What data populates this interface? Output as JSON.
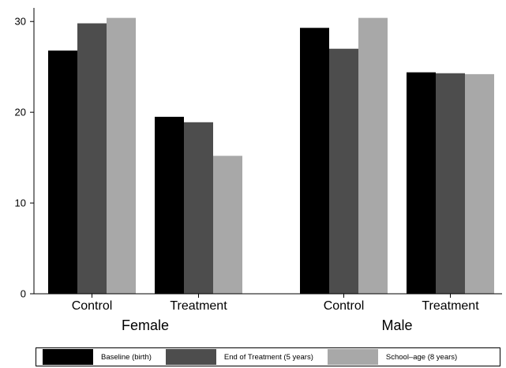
{
  "chart_data": {
    "type": "bar",
    "title": "",
    "xlabel": "",
    "ylabel": "",
    "ylim": [
      0,
      31.5
    ],
    "yticks": [
      0,
      10,
      20,
      30
    ],
    "grid": false,
    "legend_position": "bottom",
    "groups": [
      {
        "label": "Female",
        "categories": [
          "Control",
          "Treatment"
        ]
      },
      {
        "label": "Male",
        "categories": [
          "Control",
          "Treatment"
        ]
      }
    ],
    "series": [
      {
        "name": "Baseline (birth)",
        "color": "#000000",
        "values": [
          26.8,
          19.5,
          29.3,
          24.4
        ]
      },
      {
        "name": "End of Treatment (5 years)",
        "color": "#4d4d4d",
        "values": [
          29.8,
          18.9,
          27.0,
          24.3
        ]
      },
      {
        "name": "School–age (8 years)",
        "color": "#a8a8a8",
        "values": [
          30.4,
          15.2,
          30.4,
          24.2
        ]
      }
    ]
  }
}
